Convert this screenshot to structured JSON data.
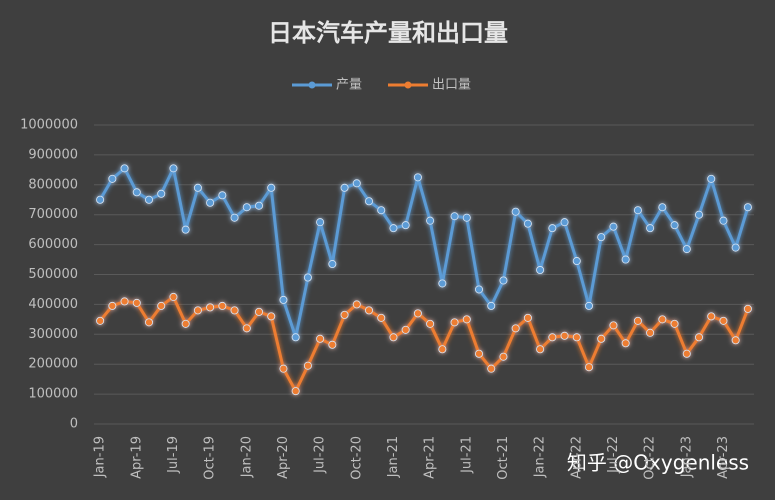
{
  "chart_data": {
    "type": "line",
    "title": "日本汽车产量和出口量",
    "categories": [
      "Jan-19",
      null,
      null,
      "Apr-19",
      null,
      null,
      "Jul-19",
      null,
      null,
      "Oct-19",
      null,
      null,
      "Jan-20",
      null,
      null,
      "Apr-20",
      null,
      null,
      "Jul-20",
      null,
      null,
      "Oct-20",
      null,
      null,
      "Jan-21",
      null,
      null,
      "Apr-21",
      null,
      null,
      "Jul-21",
      null,
      null,
      "Oct-21",
      null,
      null,
      "Jan-22",
      null,
      null,
      "Apr-22",
      null,
      null,
      "Jul-22",
      null,
      null,
      "Oct-22",
      null,
      null,
      "Jan-23",
      null,
      null,
      "Apr-23",
      null,
      null
    ],
    "series": [
      {
        "name": "产量",
        "color": "#5b9bd5",
        "values": [
          750000,
          820000,
          855000,
          775000,
          750000,
          770000,
          855000,
          650000,
          790000,
          740000,
          765000,
          690000,
          725000,
          730000,
          790000,
          415000,
          290000,
          490000,
          675000,
          535000,
          790000,
          805000,
          745000,
          715000,
          655000,
          665000,
          825000,
          680000,
          470000,
          695000,
          690000,
          450000,
          395000,
          480000,
          710000,
          670000,
          515000,
          655000,
          675000,
          545000,
          395000,
          625000,
          660000,
          550000,
          715000,
          655000,
          725000,
          665000,
          585000,
          700000,
          820000,
          680000,
          590000,
          725000
        ]
      },
      {
        "name": "出口量",
        "color": "#ed7d31",
        "values": [
          345000,
          395000,
          410000,
          405000,
          340000,
          395000,
          425000,
          335000,
          380000,
          390000,
          395000,
          380000,
          320000,
          375000,
          360000,
          185000,
          110000,
          195000,
          285000,
          265000,
          365000,
          400000,
          380000,
          355000,
          290000,
          315000,
          370000,
          335000,
          250000,
          340000,
          350000,
          235000,
          185000,
          225000,
          320000,
          355000,
          250000,
          290000,
          295000,
          290000,
          190000,
          285000,
          330000,
          270000,
          345000,
          305000,
          350000,
          335000,
          235000,
          290000,
          360000,
          345000,
          280000,
          385000
        ]
      }
    ],
    "ylim": [
      0,
      1000000
    ],
    "yticks": [
      0,
      100000,
      200000,
      300000,
      400000,
      500000,
      600000,
      700000,
      800000,
      900000,
      1000000
    ],
    "grid": true,
    "legend": "top",
    "annotation": "知乎 @Oxygenless"
  }
}
